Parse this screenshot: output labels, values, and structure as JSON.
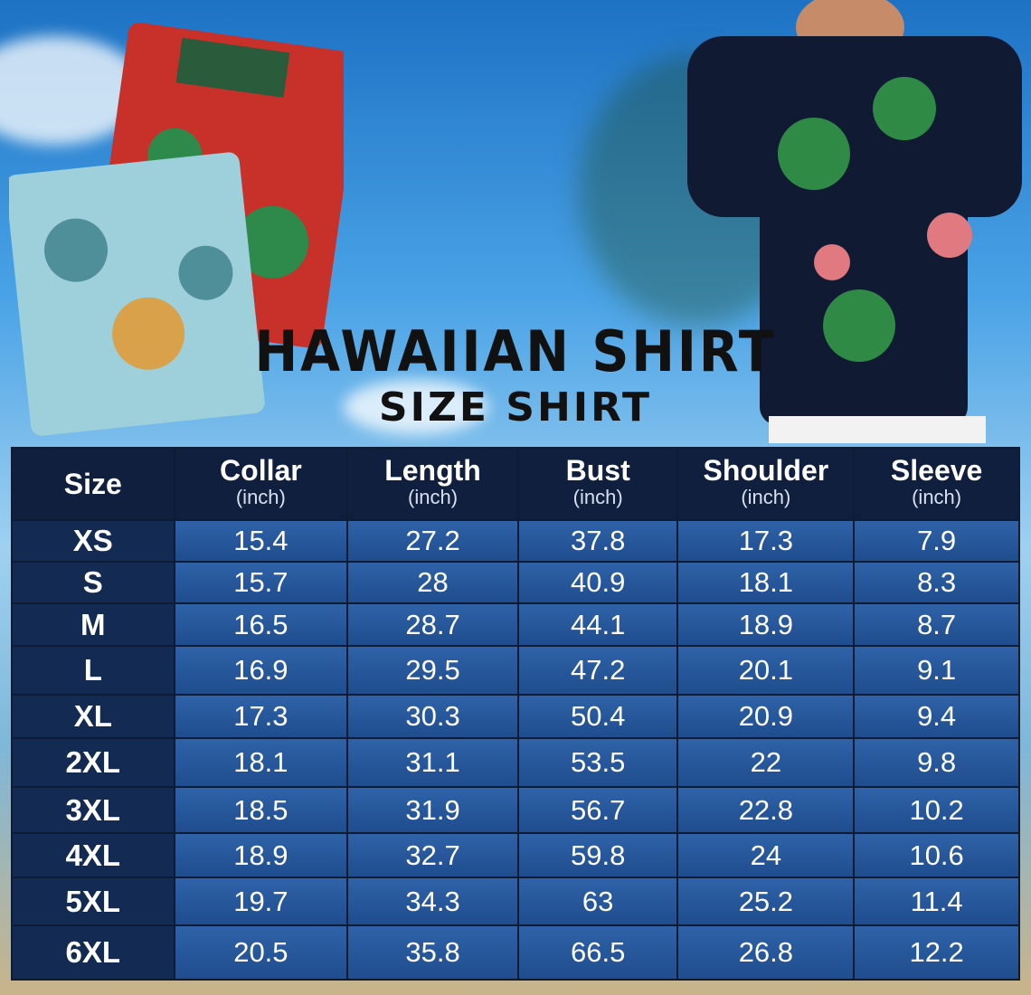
{
  "title": "HAWAIIAN SHIRT",
  "subtitle": "SIZE SHIRT",
  "colors": {
    "header_bg": "#0f1f3d",
    "cell_bg": "#2a5a9e",
    "size_col_bg": "#132a52",
    "text": "#ffffff"
  },
  "table": {
    "headers": [
      {
        "label": "Size",
        "unit": ""
      },
      {
        "label": "Collar",
        "unit": "(inch)"
      },
      {
        "label": "Length",
        "unit": "(inch)"
      },
      {
        "label": "Bust",
        "unit": "(inch)"
      },
      {
        "label": "Shoulder",
        "unit": "(inch)"
      },
      {
        "label": "Sleeve",
        "unit": "(inch)"
      }
    ],
    "rows": [
      [
        "XS",
        "15.4",
        "27.2",
        "37.8",
        "17.3",
        "7.9"
      ],
      [
        "S",
        "15.7",
        "28",
        "40.9",
        "18.1",
        "8.3"
      ],
      [
        "M",
        "16.5",
        "28.7",
        "44.1",
        "18.9",
        "8.7"
      ],
      [
        "L",
        "16.9",
        "29.5",
        "47.2",
        "20.1",
        "9.1"
      ],
      [
        "XL",
        "17.3",
        "30.3",
        "50.4",
        "20.9",
        "9.4"
      ],
      [
        "2XL",
        "18.1",
        "31.1",
        "53.5",
        "22",
        "9.8"
      ],
      [
        "3XL",
        "18.5",
        "31.9",
        "56.7",
        "22.8",
        "10.2"
      ],
      [
        "4XL",
        "18.9",
        "32.7",
        "59.8",
        "24",
        "10.6"
      ],
      [
        "5XL",
        "19.7",
        "34.3",
        "63",
        "25.2",
        "11.4"
      ],
      [
        "6XL",
        "20.5",
        "35.8",
        "66.5",
        "26.8",
        "12.2"
      ]
    ]
  }
}
